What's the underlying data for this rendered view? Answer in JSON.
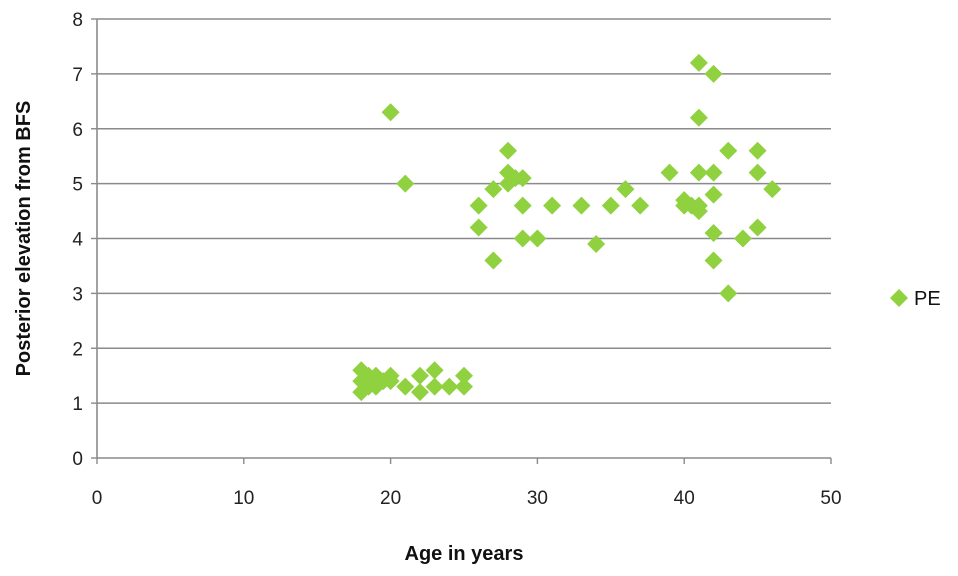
{
  "chart_data": {
    "type": "scatter",
    "title": "",
    "xlabel": "Age in years",
    "ylabel": "Posterior elevation from BFS",
    "xlim": [
      0,
      50
    ],
    "ylim": [
      0,
      8
    ],
    "x_ticks": [
      0,
      10,
      20,
      30,
      40,
      50
    ],
    "y_ticks": [
      0,
      1,
      2,
      3,
      4,
      5,
      6,
      7,
      8
    ],
    "grid": {
      "horizontal": true,
      "vertical": false
    },
    "legend_position": "right",
    "series": [
      {
        "name": "PE",
        "color": "#8fd13f",
        "marker": "diamond",
        "points": [
          [
            18,
            1.6
          ],
          [
            18,
            1.4
          ],
          [
            18,
            1.2
          ],
          [
            18.5,
            1.5
          ],
          [
            18.5,
            1.3
          ],
          [
            19,
            1.5
          ],
          [
            19,
            1.3
          ],
          [
            19.5,
            1.4
          ],
          [
            20,
            1.5
          ],
          [
            20,
            1.4
          ],
          [
            21,
            1.3
          ],
          [
            22,
            1.5
          ],
          [
            22,
            1.2
          ],
          [
            23,
            1.6
          ],
          [
            23,
            1.3
          ],
          [
            24,
            1.3
          ],
          [
            25,
            1.5
          ],
          [
            25,
            1.3
          ],
          [
            20,
            6.3
          ],
          [
            21,
            5.0
          ],
          [
            26,
            4.2
          ],
          [
            26,
            4.6
          ],
          [
            27,
            3.6
          ],
          [
            27,
            4.9
          ],
          [
            28,
            5.6
          ],
          [
            28,
            5.2
          ],
          [
            28,
            5.0
          ],
          [
            28.5,
            5.1
          ],
          [
            29,
            5.1
          ],
          [
            29,
            4.6
          ],
          [
            29,
            4.0
          ],
          [
            30,
            4.0
          ],
          [
            31,
            4.6
          ],
          [
            33,
            4.6
          ],
          [
            34,
            3.9
          ],
          [
            35,
            4.6
          ],
          [
            36,
            4.9
          ],
          [
            37,
            4.6
          ],
          [
            39,
            5.2
          ],
          [
            40,
            4.7
          ],
          [
            40,
            4.6
          ],
          [
            40.5,
            4.6
          ],
          [
            41,
            7.2
          ],
          [
            41,
            6.2
          ],
          [
            41,
            5.2
          ],
          [
            41,
            4.6
          ],
          [
            41,
            4.5
          ],
          [
            42,
            7.0
          ],
          [
            42,
            5.2
          ],
          [
            42,
            4.8
          ],
          [
            42,
            4.1
          ],
          [
            42,
            3.6
          ],
          [
            43,
            5.6
          ],
          [
            43,
            3.0
          ],
          [
            44,
            4.0
          ],
          [
            45,
            5.6
          ],
          [
            45,
            5.2
          ],
          [
            45,
            4.2
          ],
          [
            46,
            4.9
          ]
        ]
      }
    ]
  }
}
